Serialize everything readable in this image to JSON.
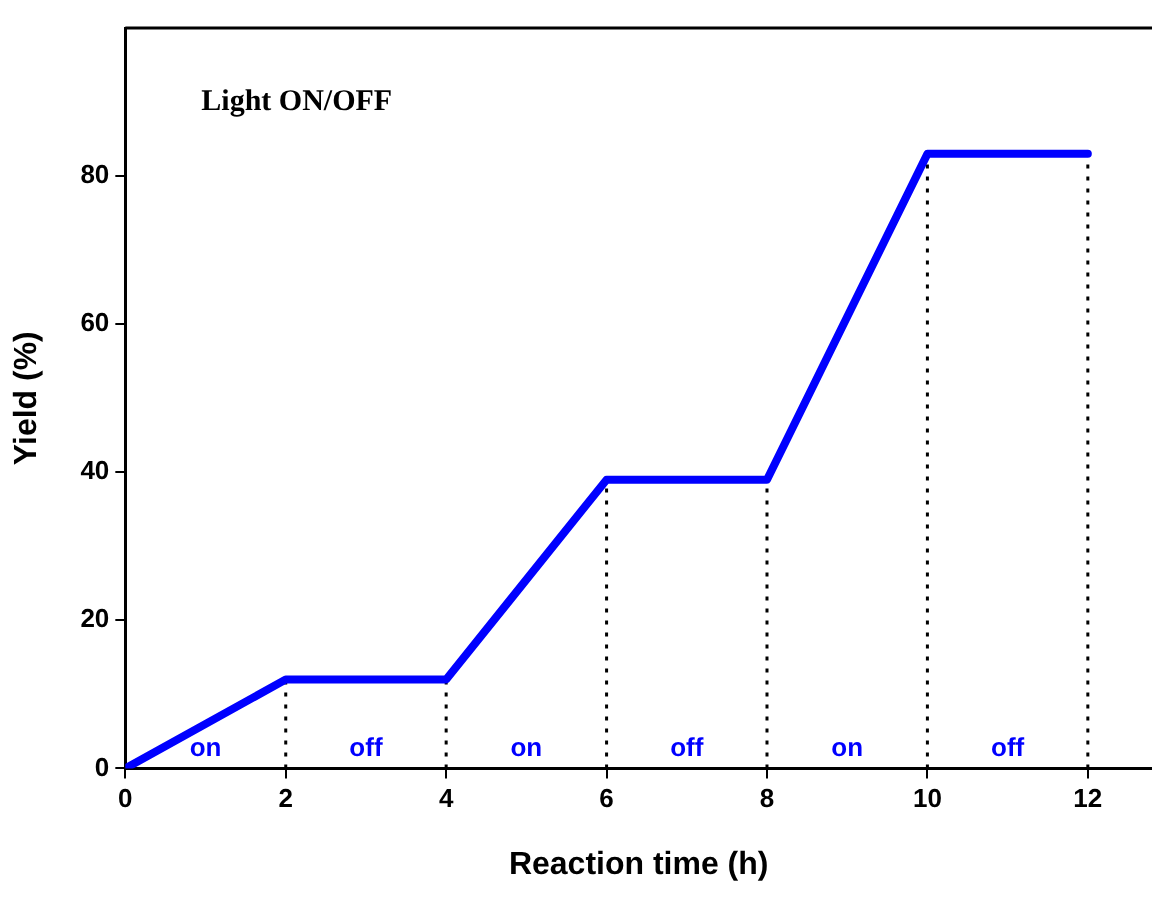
{
  "chart_data": {
    "type": "line",
    "xlabel": "Reaction time (h)",
    "ylabel": "Yield (%)",
    "x": [
      0,
      2,
      4,
      6,
      8,
      10,
      12
    ],
    "series": [
      {
        "color": "#0000ff",
        "values": [
          0,
          12,
          12,
          39,
          39,
          83,
          83
        ]
      }
    ],
    "xlim": [
      0,
      12.8
    ],
    "xticks": [
      0,
      2,
      4,
      6,
      8,
      10,
      12
    ],
    "ylim": [
      0,
      100
    ],
    "yticks": [
      0,
      20,
      40,
      60,
      80
    ],
    "grid": false,
    "legend": false,
    "marker": "none",
    "line_style": "solid",
    "ref_lines": [
      {
        "axis": "x",
        "value": 2,
        "line_style": "dotted",
        "color": "#000000"
      },
      {
        "axis": "x",
        "value": 4,
        "line_style": "dotted",
        "color": "#000000"
      },
      {
        "axis": "x",
        "value": 6,
        "line_style": "dotted",
        "color": "#000000"
      },
      {
        "axis": "x",
        "value": 8,
        "line_style": "dotted",
        "color": "#000000"
      },
      {
        "axis": "x",
        "value": 10,
        "line_style": "dotted",
        "color": "#000000"
      },
      {
        "axis": "x",
        "value": 12,
        "line_style": "dotted",
        "color": "#000000"
      }
    ],
    "annotations": [
      "Light ON/OFF",
      "on",
      "off",
      "on",
      "off",
      "on",
      "off"
    ]
  }
}
